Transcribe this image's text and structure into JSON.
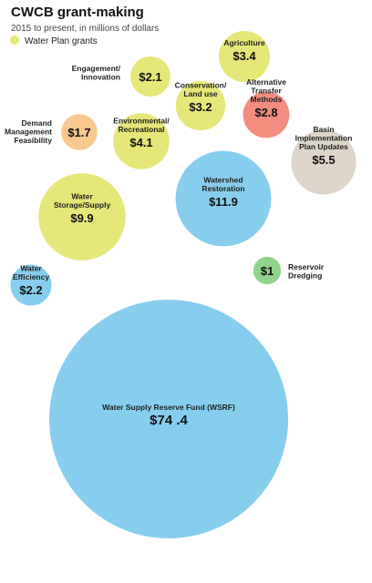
{
  "chart_data": {
    "type": "bubble",
    "title": "CWCB grant-making",
    "subtitle": "2015 to present, in millions of dollars",
    "legend": [
      {
        "label": "Water Plan grants",
        "color": "#e6e779"
      }
    ],
    "unit": "$ millions",
    "series": [
      {
        "label": [
          "Water Supply Reserve Fund (WSRF)"
        ],
        "value": 74.4,
        "value_text": "$74 .4",
        "color": "#87ceee"
      },
      {
        "label": [
          "Watershed",
          "Restoration"
        ],
        "value": 11.9,
        "value_text": "$11.9",
        "color": "#87ceee"
      },
      {
        "label": [
          "Water",
          "Storage/Supply"
        ],
        "value": 9.9,
        "value_text": "$9.9",
        "color": "#e6e779"
      },
      {
        "label": [
          "Basin",
          "Implementation",
          "Plan Updates"
        ],
        "value": 5.5,
        "value_text": "$5.5",
        "color": "#ddd5ca"
      },
      {
        "label": [
          "Environmental/",
          "Recreational"
        ],
        "value": 4.1,
        "value_text": "$4.1",
        "color": "#e6e779"
      },
      {
        "label": [
          "Agriculture"
        ],
        "value": 3.4,
        "value_text": "$3.4",
        "color": "#e6e779"
      },
      {
        "label": [
          "Conservation/",
          "Land use"
        ],
        "value": 3.2,
        "value_text": "$3.2",
        "color": "#e6e779"
      },
      {
        "label": [
          "Alternative",
          "Transfer",
          "Methods"
        ],
        "value": 2.8,
        "value_text": "$2.8",
        "color": "#f28d80"
      },
      {
        "label": [
          "Water",
          "Efficiency"
        ],
        "value": 2.2,
        "value_text": "$2.2",
        "color": "#87ceee"
      },
      {
        "label": [
          "Engagement/",
          "Innovation"
        ],
        "value": 2.1,
        "value_text": "$2.1",
        "color": "#e6e779"
      },
      {
        "label": [
          "Demand",
          "Management",
          "Feasibility"
        ],
        "value": 1.7,
        "value_text": "$1.7",
        "color": "#f8c88f"
      },
      {
        "label": [
          "Reservoir",
          "Dredging"
        ],
        "value": 1.0,
        "value_text": "$1",
        "color": "#8fd48a"
      }
    ]
  }
}
